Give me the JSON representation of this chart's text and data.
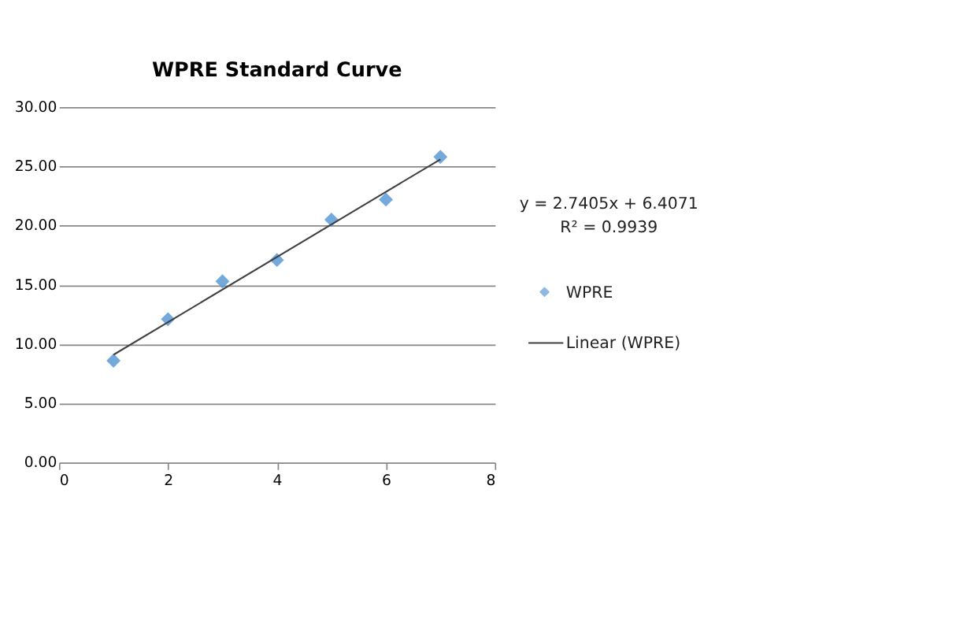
{
  "chart_data": {
    "type": "scatter",
    "title": "WPRE Standard Curve",
    "series": [
      {
        "name": "WPRE",
        "color": "#5b9bd5",
        "marker": "diamond",
        "x": [
          1,
          2,
          3,
          4,
          5,
          6,
          7
        ],
        "values": [
          8.6,
          12.1,
          15.3,
          17.1,
          20.5,
          22.2,
          25.8
        ]
      },
      {
        "name": "Linear (WPRE)",
        "type": "line",
        "color": "#404040",
        "marker": "none",
        "x": [
          1,
          7
        ],
        "values": [
          9.1,
          25.6
        ]
      }
    ],
    "xlim": [
      0,
      8
    ],
    "xticks": [
      0,
      2,
      4,
      6,
      8
    ],
    "ylim": [
      0,
      30
    ],
    "yticks": [
      {
        "value": 0,
        "label": "0.00"
      },
      {
        "value": 5,
        "label": "5.00"
      },
      {
        "value": 10,
        "label": "10.00"
      },
      {
        "value": 15,
        "label": "15.00"
      },
      {
        "value": 20,
        "label": "20.00"
      },
      {
        "value": 25,
        "label": "25.00"
      },
      {
        "value": 30,
        "label": "30.00"
      }
    ],
    "grid": "y",
    "legend": "right",
    "annotations": [
      "y = 2.7405x + 6.4071",
      "R² = 0.9939"
    ]
  }
}
